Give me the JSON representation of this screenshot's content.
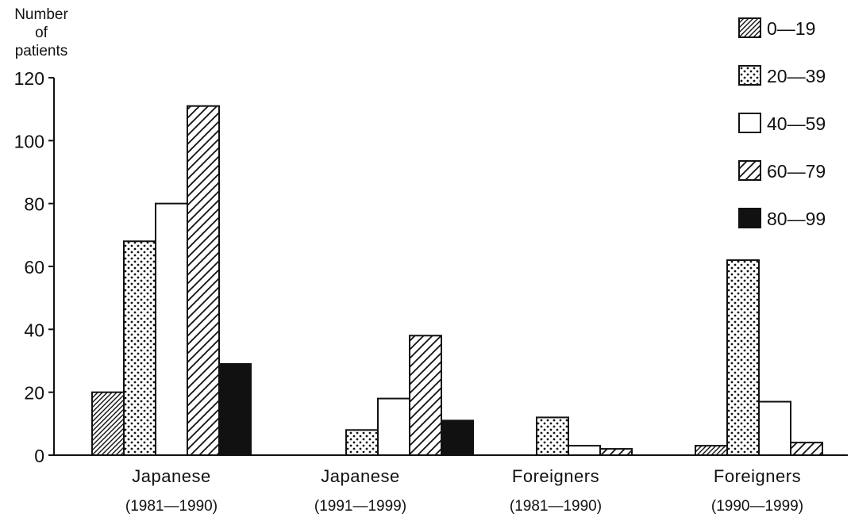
{
  "chart_data": {
    "type": "bar",
    "ylabel": "Number\nof\npatients",
    "ylim": [
      0,
      120
    ],
    "yticks": [
      0,
      20,
      40,
      60,
      80,
      100,
      120
    ],
    "grid": false,
    "legend_position": "top-right",
    "categories": [
      {
        "label": "Japanese",
        "period": "(1981—1990)"
      },
      {
        "label": "Japanese",
        "period": "(1991—1999)"
      },
      {
        "label": "Foreigners",
        "period": "(1981—1990)"
      },
      {
        "label": "Foreigners",
        "period": "(1990—1999)"
      }
    ],
    "series": [
      {
        "name": "0—19",
        "pattern": "dense-hatch",
        "values": [
          20,
          0,
          0,
          3
        ]
      },
      {
        "name": "20—39",
        "pattern": "dots",
        "values": [
          68,
          8,
          12,
          62
        ]
      },
      {
        "name": "40—59",
        "pattern": "blank",
        "values": [
          80,
          18,
          3,
          17
        ]
      },
      {
        "name": "60—79",
        "pattern": "wide-hatch",
        "values": [
          111,
          38,
          2,
          4
        ]
      },
      {
        "name": "80—99",
        "pattern": "solid",
        "values": [
          29,
          11,
          0,
          0
        ]
      }
    ]
  }
}
